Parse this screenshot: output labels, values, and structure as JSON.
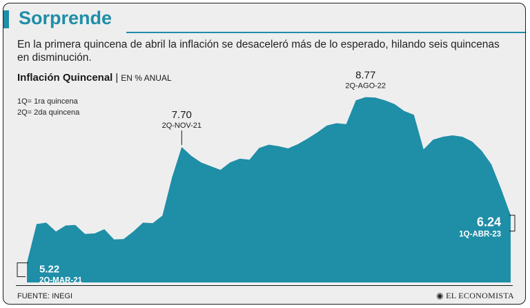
{
  "header": {
    "title": "Sorprende",
    "subtitle": "En la primera quincena de abril la inflación se desaceleró más de lo esperado, hilando seis quincenas en disminución."
  },
  "chart_meta": {
    "title": "Inflación Quincenal",
    "separator": "|",
    "unit": "EN % ANUAL",
    "legend": [
      "1Q= 1ra quincena",
      "2Q= 2da quincena"
    ]
  },
  "footer": {
    "source": "FUENTE: INEGI",
    "brand": "EL ECONOMISTA",
    "brand_icon": "globe-icon"
  },
  "colors": {
    "accent": "#1f8ea7",
    "area": "#1f8ea7",
    "background": "#eeeeef"
  },
  "chart_data": {
    "type": "area",
    "title": "Inflación Quincenal",
    "ylabel": "EN % ANUAL",
    "ylim": [
      4.8,
      9.0
    ],
    "x_start": "2Q-MAR-21",
    "x_end": "1Q-ABR-23",
    "values": [
      5.22,
      6.05,
      6.08,
      5.89,
      6.02,
      6.03,
      5.84,
      5.85,
      5.94,
      5.72,
      5.73,
      5.89,
      6.08,
      6.07,
      6.23,
      7.05,
      7.7,
      7.51,
      7.37,
      7.29,
      7.21,
      7.37,
      7.45,
      7.43,
      7.68,
      7.75,
      7.72,
      7.67,
      7.76,
      7.88,
      8.01,
      8.16,
      8.21,
      8.19,
      8.7,
      8.77,
      8.76,
      8.7,
      8.62,
      8.47,
      8.39,
      7.65,
      7.86,
      7.92,
      7.95,
      7.92,
      7.82,
      7.62,
      7.33,
      6.81,
      6.24
    ],
    "annotations": [
      {
        "label": "7.70",
        "sublabel": "2Q-NOV-21",
        "index": 16
      },
      {
        "label": "8.77",
        "sublabel": "2Q-AGO-22",
        "index": 35
      },
      {
        "label": "5.22",
        "sublabel": "2Q-MAR-21",
        "index": 0
      },
      {
        "label": "6.24",
        "sublabel": "1Q-ABR-23",
        "index": 50
      }
    ]
  }
}
